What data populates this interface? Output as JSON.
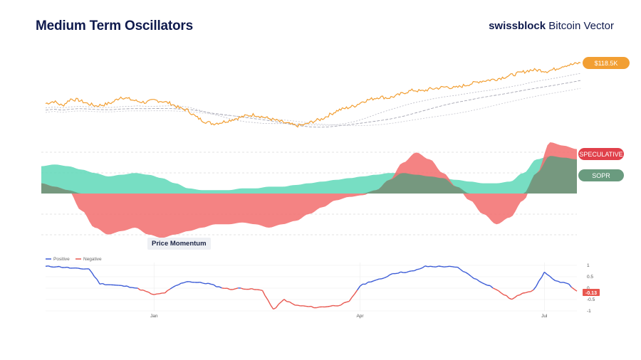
{
  "header": {
    "title": "Medium Term Oscillators",
    "brand_bold": "swissblock",
    "brand_regular": " Bitcoin Vector"
  },
  "colors": {
    "price": "#f29f33",
    "speculative": "#f26d6d",
    "sopr": "#5fd8b9",
    "overlap": "#6a9b7f",
    "positive": "#3b5bd6",
    "negative": "#e8574f",
    "title": "#0f1a4d"
  },
  "chart_data": [
    {
      "type": "line",
      "name": "price-panel",
      "series": [
        {
          "name": "Price",
          "label": "$118.5K",
          "values": [
            82,
            84,
            80,
            86,
            85,
            82,
            80,
            81,
            83,
            88,
            86,
            84,
            83,
            85,
            84,
            82,
            78,
            76,
            70,
            66,
            64,
            65,
            67,
            69,
            71,
            72,
            70,
            68,
            66,
            64,
            62,
            63,
            66,
            68,
            72,
            76,
            78,
            80,
            84,
            86,
            88,
            87,
            89,
            92,
            94,
            93,
            95,
            96,
            97,
            96,
            98,
            100,
            102,
            103,
            104,
            106,
            108,
            110,
            112,
            112,
            111,
            113,
            116,
            117,
            118.5
          ]
        }
      ]
    },
    {
      "type": "area",
      "name": "oscillator-panel",
      "series": [
        {
          "name": "SPECULATIVE",
          "label": "SPECULATIVE",
          "values": [
            0.3,
            0.2,
            0.1,
            -0.5,
            -1.0,
            -1.2,
            -1.1,
            -1.0,
            -1.2,
            -1.3,
            -1.2,
            -1.1,
            -1.0,
            -0.9,
            -0.9,
            -0.85,
            -0.9,
            -1.0,
            -0.9,
            -0.8,
            -0.6,
            -0.4,
            -0.2,
            -0.1,
            -0.05,
            0.1,
            0.4,
            0.9,
            1.2,
            1.0,
            0.6,
            0.2,
            -0.2,
            -0.6,
            -0.9,
            -0.7,
            -0.2,
            0.6,
            1.5,
            1.4,
            1.3
          ]
        },
        {
          "name": "SOPR",
          "label": "SOPR",
          "values": [
            0.8,
            0.85,
            0.8,
            0.7,
            0.6,
            0.5,
            0.55,
            0.6,
            0.55,
            0.45,
            0.3,
            0.15,
            0.1,
            0.1,
            0.1,
            0.15,
            0.15,
            0.2,
            0.2,
            0.25,
            0.3,
            0.35,
            0.4,
            0.45,
            0.5,
            0.55,
            0.6,
            0.6,
            0.55,
            0.5,
            0.45,
            0.4,
            0.35,
            0.3,
            0.3,
            0.35,
            0.6,
            1.0,
            1.1,
            1.05,
            1.0
          ]
        }
      ]
    },
    {
      "type": "line",
      "name": "price-momentum-panel",
      "title": "Price Momentum",
      "legend": [
        "Positive",
        "Negative"
      ],
      "x_ticks": [
        "Jan",
        "Apr",
        "Jul"
      ],
      "y_ticks": [
        "1",
        "0.5",
        "0",
        "-0.5",
        "-1"
      ],
      "ylim": [
        -1,
        1
      ],
      "current_value_label": "-0.13",
      "series": [
        {
          "name": "Price Momentum",
          "values": [
            0.95,
            0.95,
            0.9,
            0.85,
            0.85,
            0.2,
            0.15,
            0.1,
            0.05,
            -0.1,
            -0.3,
            -0.2,
            0.1,
            0.3,
            0.25,
            0.2,
            0.05,
            -0.05,
            0.0,
            -0.05,
            -0.1,
            -0.95,
            -0.5,
            -0.75,
            -0.8,
            -0.85,
            -0.8,
            -0.75,
            -0.6,
            0.1,
            0.3,
            0.4,
            0.65,
            0.7,
            0.75,
            0.95,
            0.95,
            0.95,
            0.9,
            0.6,
            0.3,
            0.1,
            -0.2,
            -0.5,
            -0.2,
            -0.1,
            0.7,
            0.3,
            0.25,
            -0.13
          ]
        }
      ]
    }
  ]
}
